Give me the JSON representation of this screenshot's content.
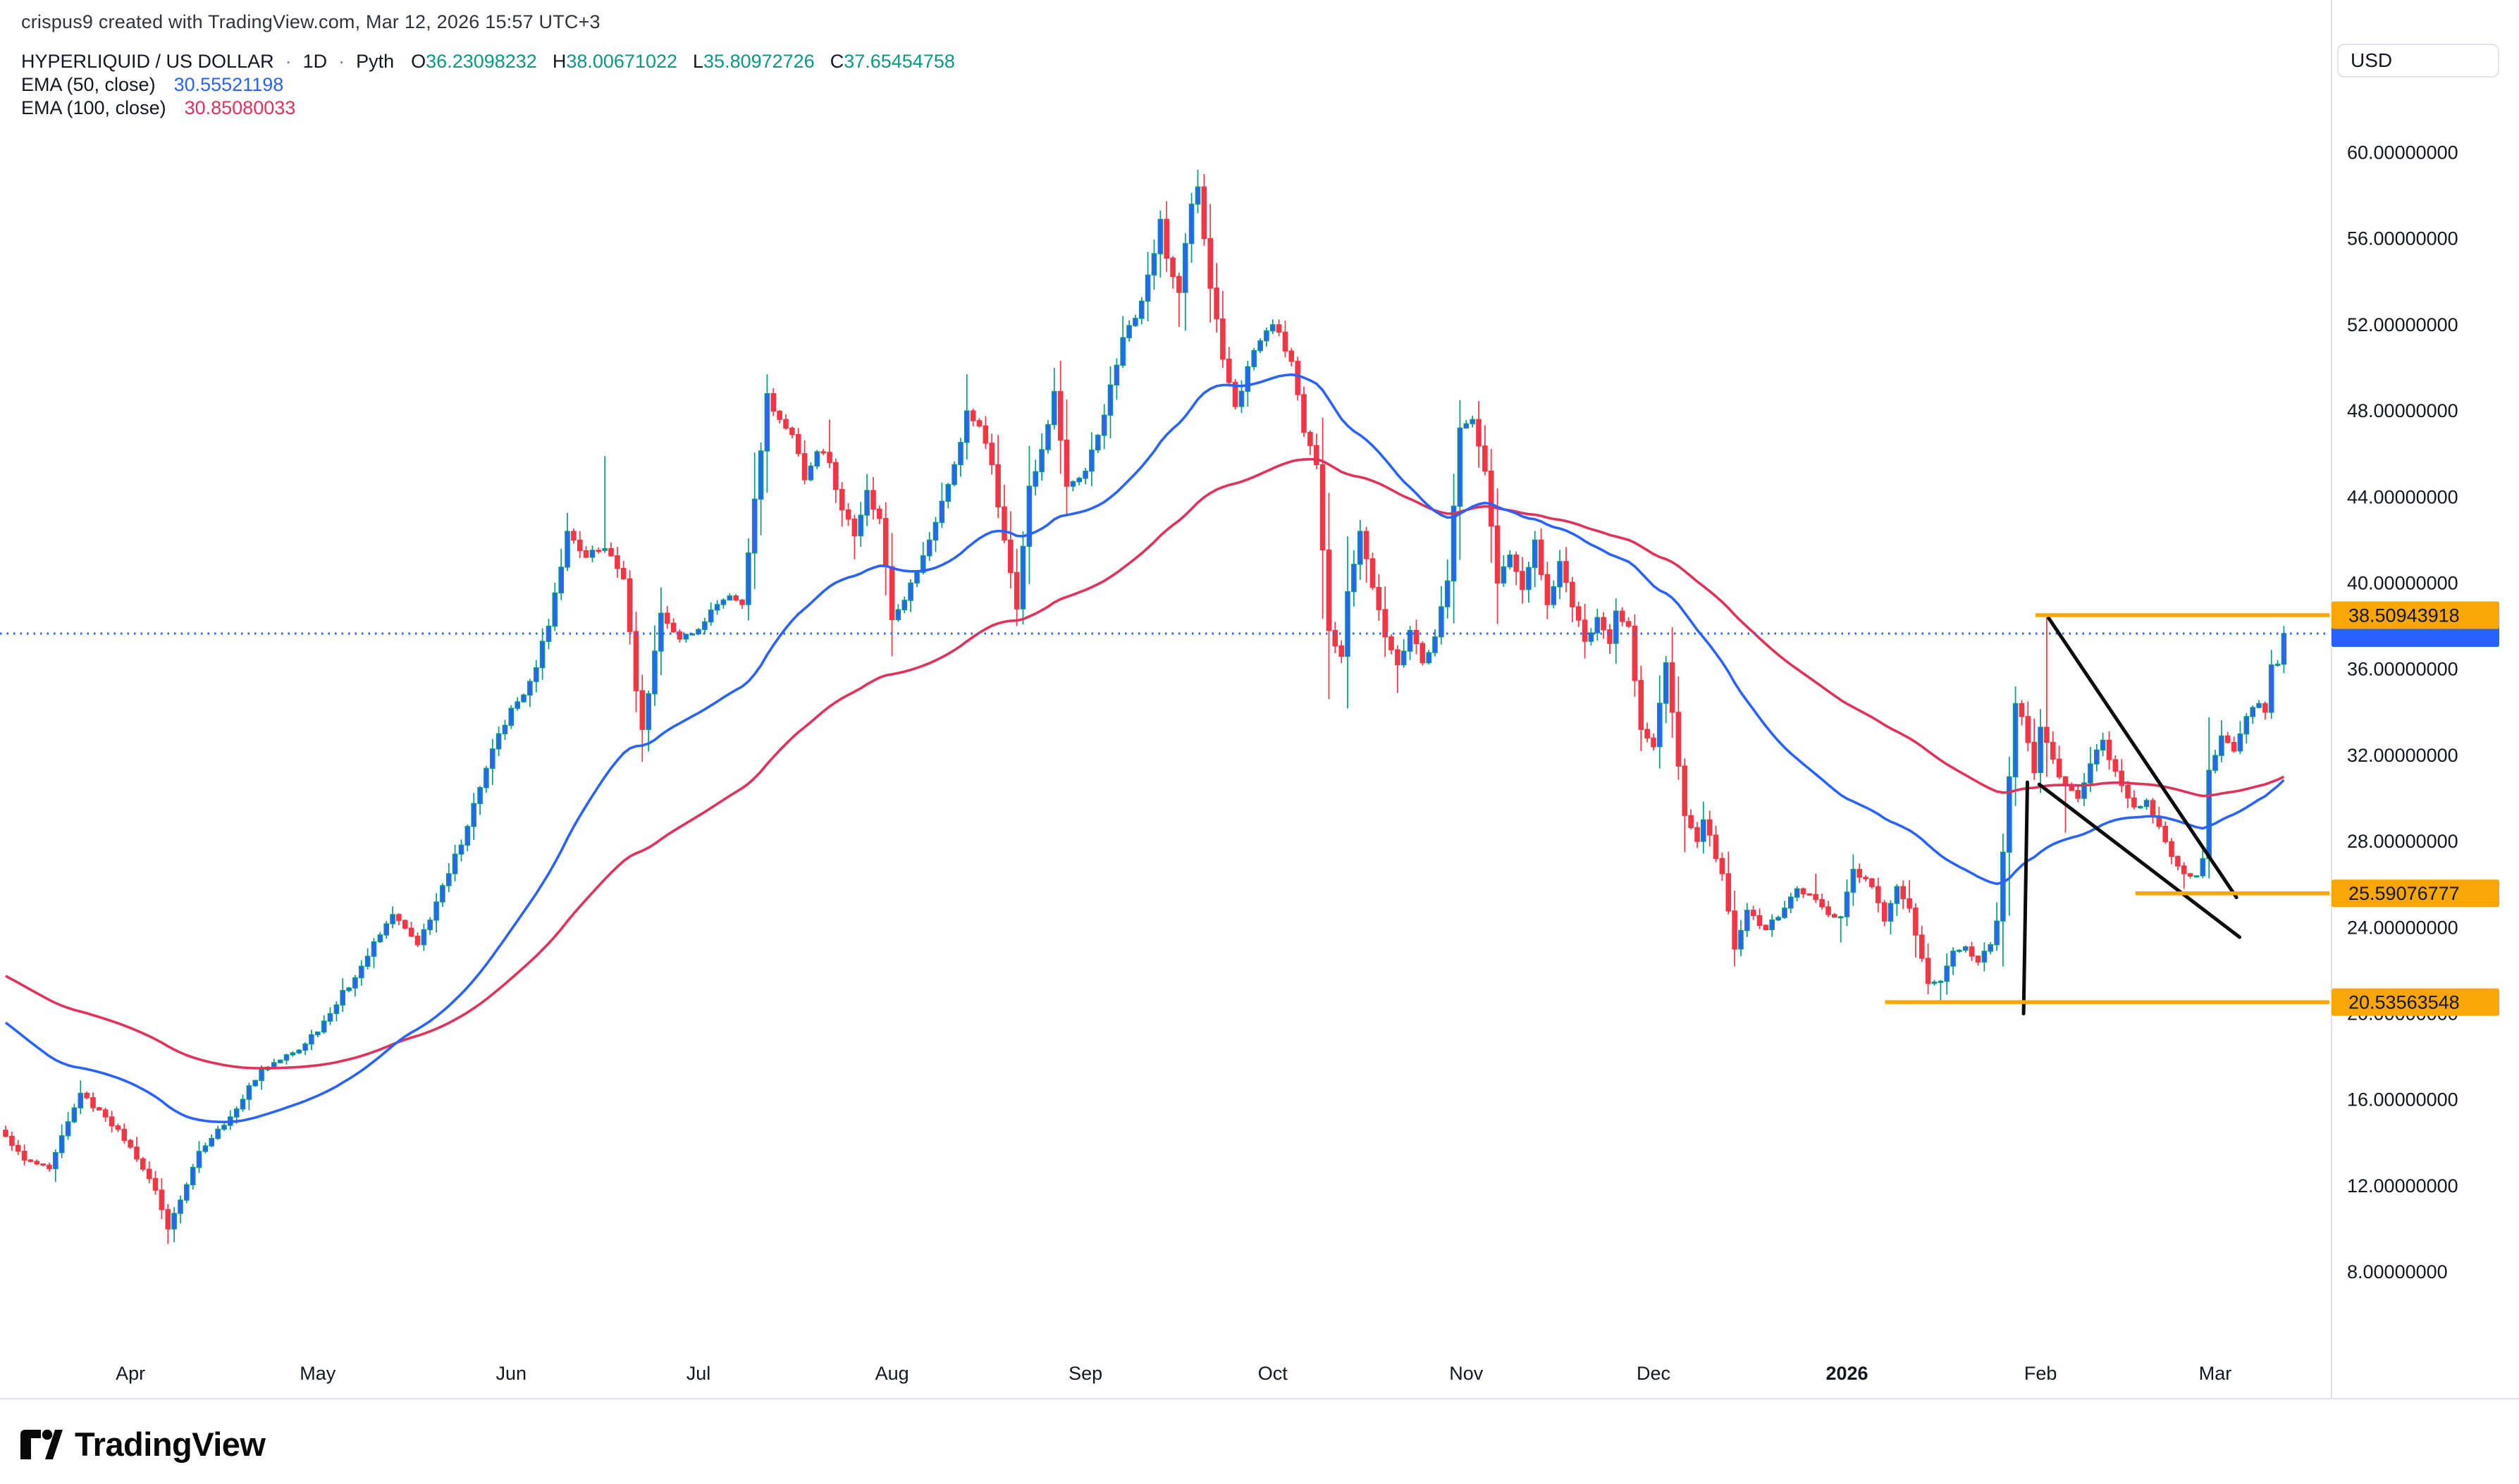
{
  "watermark": "crispus9 created with TradingView.com, Mar 12, 2026 15:57 UTC+3",
  "header": {
    "symbol": "HYPERLIQUID / US DOLLAR",
    "sep": "·",
    "interval": "1D",
    "source": "Pyth",
    "ohlc": [
      {
        "label": "O",
        "value": "36.23098232"
      },
      {
        "label": "H",
        "value": "38.00671022"
      },
      {
        "label": "L",
        "value": "35.80972726"
      },
      {
        "label": "C",
        "value": "37.65454758"
      }
    ]
  },
  "indicators": [
    {
      "name": "EMA (50, close)",
      "value": "30.55521198",
      "color": "#2962FF"
    },
    {
      "name": "EMA (100, close)",
      "value": "30.85080033",
      "color": "#E2325B"
    }
  ],
  "axis": {
    "currency": "USD",
    "price_ticks": [
      "60.00000000",
      "56.00000000",
      "52.00000000",
      "48.00000000",
      "44.00000000",
      "40.00000000",
      "36.00000000",
      "32.00000000",
      "28.00000000",
      "24.00000000",
      "20.00000000",
      "16.00000000",
      "12.00000000",
      "8.00000000"
    ],
    "price_tick_values": [
      60,
      56,
      52,
      48,
      44,
      40,
      36,
      32,
      28,
      24,
      20,
      16,
      12,
      8
    ],
    "time_labels": [
      {
        "label": "Apr",
        "day": 20,
        "bold": false
      },
      {
        "label": "May",
        "day": 50,
        "bold": false
      },
      {
        "label": "Jun",
        "day": 81,
        "bold": false
      },
      {
        "label": "Jul",
        "day": 111,
        "bold": false
      },
      {
        "label": "Aug",
        "day": 142,
        "bold": false
      },
      {
        "label": "Sep",
        "day": 173,
        "bold": false
      },
      {
        "label": "Oct",
        "day": 203,
        "bold": false
      },
      {
        "label": "Nov",
        "day": 234,
        "bold": false
      },
      {
        "label": "Dec",
        "day": 264,
        "bold": false
      },
      {
        "label": "2026",
        "day": 295,
        "bold": true
      },
      {
        "label": "Feb",
        "day": 326,
        "bold": false
      },
      {
        "label": "Mar",
        "day": 354,
        "bold": false
      }
    ]
  },
  "logo_text": "TradingView",
  "colors": {
    "up_body": "#2962FF",
    "up_border": "#089981",
    "up_wick": "#089981",
    "down_body": "#F23645",
    "down_border": "#F23645",
    "down_wick": "#F23645",
    "ema50": "#2962FF",
    "ema100": "#E2325B",
    "ray": "#F9A606",
    "ray_label_bg": "#F9A606",
    "ray_label_text": "#131722",
    "price_line": "#2962FF",
    "price_label_bg": "#2962FF",
    "axis_text": "#131722",
    "border": "#E0E3EB",
    "trendline": "#0b0b0b"
  },
  "chart_data": {
    "type": "candlestick",
    "title": "HYPERLIQUID / US DOLLAR · 1D · Pyth",
    "start_date": "2025-03-12",
    "end_date": "2026-03-12",
    "days_total": 365,
    "ylim": [
      8,
      60
    ],
    "tick_step": 4,
    "grid": false,
    "last_bar": {
      "open": 36.23098232,
      "high": 38.00671022,
      "low": 35.80972726,
      "close": 37.65454758
    },
    "ema_seed": {
      "ema50": 19.8,
      "ema100": 21.9
    },
    "price_line_value": 37.65454758,
    "key_levels": [
      {
        "price": 38.50943918,
        "label": "38.50943918",
        "start_day": 325.2
      },
      {
        "price": 25.59076777,
        "label": "25.59076777",
        "start_day": 341.2
      },
      {
        "price": 20.53563548,
        "label": "20.53563548",
        "start_day": 301.1
      }
    ],
    "trendlines": [
      {
        "d1": 327.3,
        "p1": 38.38,
        "d2": 357.4,
        "p2": 25.4
      },
      {
        "d1": 325.8,
        "p1": 30.65,
        "d2": 357.9,
        "p2": 23.55
      },
      {
        "d1": 323.9,
        "p1": 30.75,
        "d2": 323.3,
        "p2": 20.0
      }
    ],
    "anchors": [
      [
        0,
        14.3,
        null,
        null
      ],
      [
        3,
        13.2,
        null,
        null
      ],
      [
        7,
        12.8,
        null,
        null
      ],
      [
        12,
        16.3,
        16.9,
        null
      ],
      [
        16,
        15.2,
        null,
        null
      ],
      [
        20,
        13.8,
        null,
        null
      ],
      [
        24,
        11.8,
        null,
        null
      ],
      [
        26,
        10.0,
        null,
        9.3
      ],
      [
        31,
        13.6,
        null,
        null
      ],
      [
        36,
        15.2,
        null,
        null
      ],
      [
        41,
        17.4,
        null,
        null
      ],
      [
        47,
        18.3,
        null,
        null
      ],
      [
        52,
        20.0,
        null,
        null
      ],
      [
        57,
        22.2,
        null,
        null
      ],
      [
        62,
        24.6,
        null,
        null
      ],
      [
        66,
        23.2,
        null,
        null
      ],
      [
        71,
        26.5,
        null,
        null
      ],
      [
        76,
        30.5,
        null,
        null
      ],
      [
        79,
        33.0,
        null,
        null
      ],
      [
        83,
        34.8,
        null,
        null
      ],
      [
        87,
        38.0,
        null,
        null
      ],
      [
        90,
        42.4,
        null,
        null
      ],
      [
        93,
        41.2,
        null,
        null
      ],
      [
        96,
        41.6,
        45.9,
        null
      ],
      [
        99,
        40.2,
        null,
        null
      ],
      [
        101,
        35.0,
        null,
        null
      ],
      [
        102,
        33.2,
        null,
        31.7
      ],
      [
        105,
        38.6,
        null,
        null
      ],
      [
        108,
        37.4,
        null,
        null
      ],
      [
        112,
        38.2,
        null,
        null
      ],
      [
        114,
        39.0,
        null,
        null
      ],
      [
        116,
        39.4,
        null,
        null
      ],
      [
        118,
        39.0,
        null,
        null
      ],
      [
        120,
        43.9,
        null,
        null
      ],
      [
        122,
        48.8,
        49.7,
        null
      ],
      [
        124,
        47.6,
        null,
        null
      ],
      [
        126,
        46.9,
        null,
        null
      ],
      [
        128,
        44.8,
        null,
        null
      ],
      [
        130,
        46.1,
        null,
        null
      ],
      [
        132,
        45.6,
        47.6,
        null
      ],
      [
        134,
        43.4,
        null,
        null
      ],
      [
        136,
        42.2,
        null,
        41.1
      ],
      [
        138,
        44.3,
        null,
        null
      ],
      [
        140,
        43.0,
        null,
        null
      ],
      [
        142,
        38.3,
        null,
        36.6
      ],
      [
        144,
        39.2,
        null,
        null
      ],
      [
        146,
        40.5,
        null,
        null
      ],
      [
        148,
        42.0,
        null,
        null
      ],
      [
        150,
        43.8,
        null,
        null
      ],
      [
        152,
        45.5,
        null,
        null
      ],
      [
        154,
        48.0,
        49.7,
        null
      ],
      [
        156,
        47.3,
        null,
        null
      ],
      [
        158,
        45.5,
        null,
        null
      ],
      [
        160,
        42.0,
        null,
        null
      ],
      [
        162,
        38.8,
        null,
        38.0
      ],
      [
        164,
        44.5,
        null,
        null
      ],
      [
        166,
        46.2,
        null,
        null
      ],
      [
        168,
        48.9,
        50.0,
        null
      ],
      [
        170,
        44.5,
        null,
        43.2
      ],
      [
        173,
        45.2,
        null,
        null
      ],
      [
        176,
        47.8,
        null,
        null
      ],
      [
        179,
        51.4,
        null,
        null
      ],
      [
        182,
        53.1,
        null,
        null
      ],
      [
        184,
        55.3,
        null,
        null
      ],
      [
        185,
        56.9,
        57.3,
        null
      ],
      [
        186,
        55.1,
        null,
        null
      ],
      [
        188,
        53.5,
        null,
        51.9
      ],
      [
        190,
        57.6,
        null,
        null
      ],
      [
        191,
        58.4,
        59.2,
        null
      ],
      [
        192,
        56.0,
        59.0,
        null
      ],
      [
        193,
        53.7,
        null,
        null
      ],
      [
        195,
        50.4,
        null,
        50.0
      ],
      [
        197,
        48.2,
        null,
        null
      ],
      [
        200,
        50.8,
        null,
        null
      ],
      [
        203,
        52.0,
        null,
        null
      ],
      [
        206,
        50.3,
        null,
        null
      ],
      [
        208,
        47.0,
        null,
        null
      ],
      [
        210,
        45.5,
        null,
        null
      ],
      [
        212,
        37.8,
        44.2,
        34.6
      ],
      [
        214,
        36.6,
        null,
        null
      ],
      [
        215,
        39.6,
        null,
        null
      ],
      [
        217,
        42.4,
        null,
        null
      ],
      [
        219,
        39.8,
        null,
        null
      ],
      [
        221,
        37.5,
        null,
        null
      ],
      [
        223,
        36.2,
        null,
        34.9
      ],
      [
        225,
        37.8,
        null,
        null
      ],
      [
        227,
        36.3,
        null,
        null
      ],
      [
        229,
        37.5,
        null,
        null
      ],
      [
        231,
        40.1,
        null,
        null
      ],
      [
        233,
        47.2,
        48.5,
        null
      ],
      [
        235,
        47.6,
        null,
        null
      ],
      [
        237,
        45.2,
        null,
        null
      ],
      [
        239,
        40.0,
        null,
        38.1
      ],
      [
        241,
        41.3,
        null,
        null
      ],
      [
        243,
        39.7,
        null,
        null
      ],
      [
        245,
        42.0,
        null,
        null
      ],
      [
        247,
        39.0,
        null,
        null
      ],
      [
        249,
        41.0,
        null,
        null
      ],
      [
        251,
        38.9,
        null,
        null
      ],
      [
        253,
        37.3,
        null,
        36.5
      ],
      [
        255,
        38.4,
        null,
        null
      ],
      [
        257,
        37.2,
        null,
        null
      ],
      [
        258,
        38.7,
        null,
        null
      ],
      [
        260,
        38.0,
        null,
        null
      ],
      [
        262,
        33.2,
        null,
        32.2
      ],
      [
        264,
        32.4,
        null,
        null
      ],
      [
        266,
        36.3,
        null,
        null
      ],
      [
        267,
        34.0,
        null,
        null
      ],
      [
        268,
        31.5,
        null,
        null
      ],
      [
        269,
        29.2,
        null,
        null
      ],
      [
        271,
        28.0,
        null,
        null
      ],
      [
        272,
        29.0,
        null,
        null
      ],
      [
        275,
        26.5,
        null,
        null
      ],
      [
        277,
        23.0,
        null,
        22.2
      ],
      [
        279,
        24.8,
        null,
        null
      ],
      [
        282,
        23.9,
        null,
        null
      ],
      [
        285,
        24.9,
        null,
        null
      ],
      [
        287,
        25.8,
        null,
        null
      ],
      [
        290,
        25.3,
        26.5,
        null
      ],
      [
        292,
        24.6,
        null,
        null
      ],
      [
        294,
        24.5,
        null,
        23.3
      ],
      [
        296,
        26.7,
        27.4,
        null
      ],
      [
        299,
        25.9,
        null,
        null
      ],
      [
        301,
        24.3,
        null,
        null
      ],
      [
        303,
        25.9,
        null,
        null
      ],
      [
        305,
        24.9,
        26.2,
        null
      ],
      [
        308,
        21.4,
        null,
        20.9
      ],
      [
        310,
        21.5,
        null,
        20.6
      ],
      [
        312,
        22.9,
        null,
        null
      ],
      [
        314,
        23.1,
        null,
        null
      ],
      [
        316,
        22.4,
        null,
        null
      ],
      [
        318,
        23.2,
        null,
        null
      ],
      [
        319,
        24.3,
        null,
        null
      ],
      [
        320,
        27.5,
        null,
        null
      ],
      [
        321,
        31.0,
        null,
        null
      ],
      [
        322,
        34.4,
        35.2,
        null
      ],
      [
        323,
        33.8,
        null,
        null
      ],
      [
        324,
        32.6,
        null,
        null
      ],
      [
        325,
        31.2,
        null,
        null
      ],
      [
        326,
        33.3,
        null,
        null
      ],
      [
        327,
        32.6,
        38.4,
        31.0
      ],
      [
        329,
        31.0,
        null,
        null
      ],
      [
        330,
        30.6,
        null,
        28.4
      ],
      [
        332,
        30.0,
        null,
        null
      ],
      [
        334,
        31.6,
        null,
        null
      ],
      [
        336,
        32.7,
        null,
        null
      ],
      [
        337,
        31.8,
        null,
        null
      ],
      [
        339,
        30.6,
        null,
        null
      ],
      [
        341,
        29.6,
        null,
        null
      ],
      [
        343,
        29.9,
        null,
        null
      ],
      [
        345,
        28.7,
        null,
        null
      ],
      [
        347,
        27.3,
        null,
        null
      ],
      [
        349,
        26.5,
        null,
        25.8
      ],
      [
        351,
        26.4,
        null,
        null
      ],
      [
        352,
        27.2,
        null,
        null
      ],
      [
        353,
        31.3,
        null,
        null
      ],
      [
        355,
        32.9,
        null,
        null
      ],
      [
        357,
        32.2,
        null,
        null
      ],
      [
        359,
        33.8,
        null,
        null
      ],
      [
        361,
        34.4,
        null,
        null
      ],
      [
        362,
        34.0,
        null,
        null
      ],
      [
        363,
        36.2,
        36.9,
        null
      ],
      [
        364,
        36.23,
        null,
        null
      ],
      [
        365,
        37.65454758,
        38.00671022,
        35.80972726
      ]
    ]
  }
}
